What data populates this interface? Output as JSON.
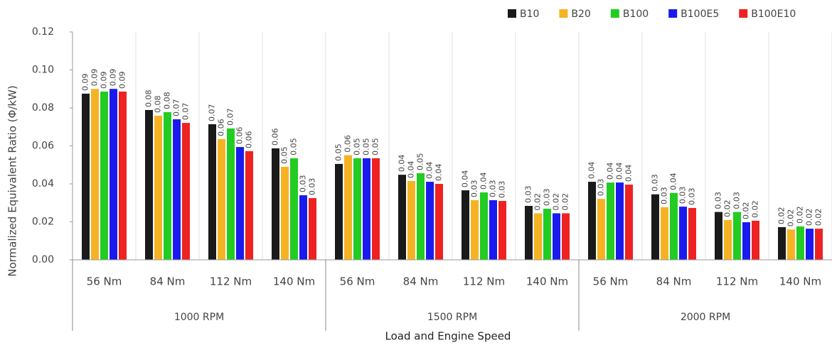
{
  "chart_data": {
    "type": "bar",
    "y_label": "Normalized Equivalent Ratio (Φ/kW)",
    "x_label": "Load and Engine Speed",
    "categories": [
      "56 Nm",
      "84 Nm",
      "112 Nm",
      "140 Nm",
      "56 Nm",
      "84 Nm",
      "112 Nm",
      "140 Nm",
      "56 Nm",
      "84 Nm",
      "112 Nm",
      "140 Nm"
    ],
    "groups": [
      "1000 RPM",
      "1500 RPM",
      "2000 RPM"
    ],
    "series": [
      {
        "name": "B10",
        "color": "#1a1a1a",
        "values": [
          0.0875,
          0.0789,
          0.0714,
          0.0587,
          0.0505,
          0.0448,
          0.0366,
          0.0284,
          0.0411,
          0.0345,
          0.0252,
          0.0172
        ],
        "value_labels": [
          "0.09",
          "0.08",
          "0.07",
          "0.06",
          "0.05",
          "0.04",
          "0.04",
          "0.03",
          "0.04",
          "0.03",
          "0.03",
          "0.02"
        ]
      },
      {
        "name": "B20",
        "color": "#f5b324",
        "values": [
          0.09,
          0.0759,
          0.0636,
          0.049,
          0.0551,
          0.0415,
          0.0314,
          0.0245,
          0.0321,
          0.0277,
          0.021,
          0.016
        ],
        "value_labels": [
          "0.09",
          "0.08",
          "0.06",
          "0.05",
          "0.06",
          "0.04",
          "0.03",
          "0.02",
          "0.03",
          "0.03",
          "0.02",
          "0.02"
        ]
      },
      {
        "name": "B100",
        "color": "#22cc22",
        "values": [
          0.0886,
          0.0778,
          0.0692,
          0.0535,
          0.0535,
          0.0456,
          0.0355,
          0.0269,
          0.0407,
          0.0352,
          0.0252,
          0.0176
        ],
        "value_labels": [
          "0.09",
          "0.08",
          "0.07",
          "0.05",
          "0.05",
          "0.05",
          "0.04",
          "0.03",
          "0.04",
          "0.04",
          "0.03",
          "0.02"
        ]
      },
      {
        "name": "B100E5",
        "color": "#1a1aee",
        "values": [
          0.09,
          0.074,
          0.0594,
          0.034,
          0.0535,
          0.0411,
          0.0314,
          0.0245,
          0.0407,
          0.028,
          0.0198,
          0.0164
        ],
        "value_labels": [
          "0.09",
          "0.07",
          "0.06",
          "0.03",
          "0.05",
          "0.04",
          "0.03",
          "0.02",
          "0.04",
          "0.03",
          "0.02",
          "0.02"
        ]
      },
      {
        "name": "B100E10",
        "color": "#ee2222",
        "values": [
          0.0886,
          0.0721,
          0.0572,
          0.0325,
          0.0535,
          0.04,
          0.031,
          0.0245,
          0.0396,
          0.0273,
          0.0206,
          0.0164
        ],
        "value_labels": [
          "0.09",
          "0.07",
          "0.06",
          "0.03",
          "0.05",
          "0.04",
          "0.03",
          "0.02",
          "0.04",
          "0.03",
          "0.02",
          "0.02"
        ]
      }
    ],
    "ylim": [
      0,
      0.12
    ],
    "yticks": [
      {
        "value": 0,
        "label": "0.00"
      },
      0.02,
      0.04,
      0.06,
      0.08,
      {
        "value": 0.1,
        "label": "0.10"
      },
      0.12
    ],
    "grid": true
  }
}
